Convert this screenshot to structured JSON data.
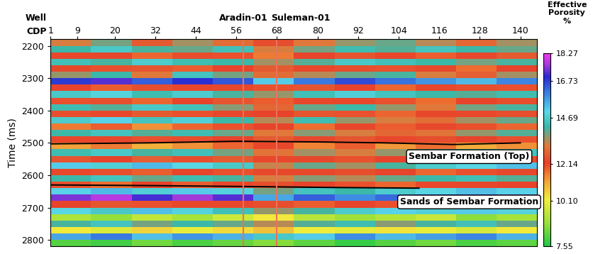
{
  "chart_data": {
    "type": "heatmap",
    "x_label": "CDP",
    "x_title_left": "Well",
    "y_label": "Time (ms)",
    "colorbar_label": "Effective\nPorosity\n%",
    "xlim": [
      1,
      145
    ],
    "xticks": [
      1,
      9,
      20,
      32,
      44,
      56,
      68,
      80,
      92,
      104,
      116,
      128,
      140
    ],
    "ylim": [
      2180,
      2820
    ],
    "yticks": [
      2200,
      2300,
      2400,
      2500,
      2600,
      2700,
      2800
    ],
    "x_edges": [
      1,
      13,
      25,
      37,
      49,
      61,
      73,
      85,
      97,
      109,
      121,
      133,
      145
    ],
    "y_edges": [
      2180,
      2200,
      2220,
      2240,
      2260,
      2280,
      2300,
      2320,
      2340,
      2360,
      2380,
      2400,
      2420,
      2440,
      2460,
      2480,
      2500,
      2520,
      2540,
      2560,
      2580,
      2600,
      2620,
      2640,
      2660,
      2680,
      2700,
      2720,
      2740,
      2760,
      2780,
      2800,
      2820
    ],
    "cells": [
      [
        13.2,
        13.8,
        12.6,
        13.5,
        12.9,
        12.4,
        13.1,
        13.6,
        13.9,
        13.4,
        12.8,
        13.5
      ],
      [
        14.2,
        14.6,
        14.1,
        13.9,
        14.4,
        13.2,
        13.8,
        14.3,
        14.0,
        14.5,
        14.2,
        13.9
      ],
      [
        12.1,
        12.3,
        11.8,
        12.4,
        12.0,
        11.6,
        12.2,
        12.5,
        12.1,
        11.9,
        12.3,
        12.6
      ],
      [
        14.4,
        14.1,
        14.7,
        14.3,
        14.2,
        13.5,
        14.0,
        14.6,
        14.4,
        14.2,
        13.8,
        14.1
      ],
      [
        12.3,
        12.0,
        12.5,
        11.9,
        12.2,
        12.6,
        12.1,
        12.4,
        12.0,
        12.3,
        11.7,
        12.2
      ],
      [
        13.6,
        14.2,
        13.1,
        14.5,
        13.8,
        12.9,
        13.4,
        13.9,
        14.1,
        13.2,
        12.7,
        13.5
      ],
      [
        16.8,
        17.2,
        16.4,
        16.9,
        16.5,
        15.2,
        16.1,
        16.6,
        16.2,
        15.8,
        15.4,
        16.0
      ],
      [
        12.2,
        11.9,
        12.4,
        12.1,
        12.3,
        12.0,
        12.5,
        12.2,
        11.8,
        12.1,
        12.4,
        12.0
      ],
      [
        14.6,
        14.9,
        14.3,
        14.7,
        14.1,
        13.6,
        14.4,
        14.8,
        14.5,
        14.2,
        14.0,
        14.3
      ],
      [
        12.0,
        12.4,
        11.8,
        12.2,
        12.5,
        11.9,
        12.1,
        12.3,
        12.0,
        11.7,
        12.2,
        12.4
      ],
      [
        14.3,
        14.0,
        14.6,
        14.4,
        13.7,
        12.8,
        13.9,
        14.2,
        13.6,
        13.1,
        13.8,
        14.1
      ],
      [
        12.4,
        12.1,
        12.6,
        12.0,
        12.3,
        12.2,
        12.5,
        12.0,
        11.8,
        12.3,
        12.1,
        12.4
      ],
      [
        14.7,
        15.1,
        14.5,
        14.8,
        14.2,
        13.4,
        14.3,
        13.6,
        13.2,
        12.9,
        13.5,
        13.9
      ],
      [
        11.6,
        11.9,
        11.4,
        11.8,
        12.0,
        12.2,
        11.7,
        12.1,
        11.9,
        12.3,
        12.0,
        11.8
      ],
      [
        14.2,
        14.5,
        14.0,
        14.3,
        13.9,
        13.1,
        13.7,
        13.2,
        12.8,
        13.0,
        13.6,
        14.0
      ],
      [
        12.1,
        12.3,
        12.0,
        12.4,
        12.2,
        12.6,
        12.3,
        12.5,
        12.1,
        12.4,
        12.2,
        12.0
      ],
      [
        11.2,
        11.6,
        11.0,
        11.4,
        11.8,
        12.1,
        11.5,
        11.9,
        11.3,
        11.7,
        11.1,
        11.4
      ],
      [
        14.3,
        14.6,
        14.1,
        14.4,
        13.8,
        13.0,
        13.5,
        13.2,
        13.6,
        14.0,
        14.3,
        14.5
      ],
      [
        12.5,
        12.2,
        12.7,
        12.4,
        12.6,
        12.1,
        12.3,
        12.0,
        12.2,
        12.5,
        12.4,
        12.1
      ],
      [
        15.2,
        14.8,
        15.4,
        15.0,
        14.6,
        13.3,
        13.9,
        13.5,
        14.1,
        14.7,
        15.0,
        15.3
      ],
      [
        12.1,
        12.4,
        11.9,
        12.2,
        12.0,
        12.3,
        12.1,
        12.4,
        12.2,
        11.8,
        12.0,
        12.3
      ],
      [
        14.2,
        14.5,
        13.9,
        14.3,
        14.1,
        13.2,
        13.7,
        13.4,
        13.9,
        14.2,
        14.4,
        14.0
      ],
      [
        12.0,
        11.7,
        12.2,
        11.9,
        12.1,
        12.4,
        12.2,
        12.0,
        11.8,
        12.1,
        12.3,
        12.2
      ],
      [
        15.1,
        15.4,
        14.8,
        15.2,
        14.9,
        13.8,
        14.5,
        14.2,
        14.7,
        15.0,
        15.3,
        15.1
      ],
      [
        17.4,
        17.8,
        17.1,
        17.6,
        17.2,
        15.6,
        16.4,
        15.9,
        16.3,
        16.8,
        17.1,
        17.5
      ],
      [
        12.2,
        12.5,
        12.0,
        12.3,
        12.1,
        12.4,
        11.9,
        12.2,
        12.0,
        12.3,
        12.1,
        12.4
      ],
      [
        15.0,
        14.6,
        15.3,
        14.9,
        14.4,
        13.6,
        14.1,
        14.7,
        15.1,
        14.8,
        15.2,
        14.9
      ],
      [
        9.1,
        8.8,
        9.4,
        9.0,
        9.6,
        10.2,
        9.3,
        8.9,
        9.2,
        9.5,
        8.7,
        9.0
      ],
      [
        14.1,
        14.5,
        13.8,
        14.2,
        13.9,
        13.4,
        14.0,
        14.3,
        13.7,
        14.1,
        14.4,
        13.9
      ],
      [
        10.2,
        9.8,
        10.5,
        10.0,
        10.4,
        10.8,
        10.1,
        9.9,
        10.3,
        10.0,
        9.7,
        10.2
      ],
      [
        15.6,
        16.1,
        15.3,
        15.8,
        15.5,
        14.6,
        15.2,
        15.9,
        15.4,
        15.7,
        16.0,
        15.5
      ],
      [
        8.1,
        7.9,
        8.4,
        8.0,
        8.3,
        8.6,
        8.2,
        7.8,
        8.1,
        8.4,
        8.0,
        8.2
      ]
    ],
    "colorbar_range": [
      7.55,
      18.27
    ],
    "colorbar_ticks": [
      7.55,
      {
        "value": 10.1,
        "label": "10.10"
      },
      12.14,
      14.69,
      16.73,
      18.27
    ],
    "wells": [
      {
        "name": "Aradin-01",
        "cdp": 58,
        "color": "#e8735a"
      },
      {
        "name": "Suleman-01",
        "cdp": 68,
        "color": "#e8735a"
      }
    ],
    "horizons": [
      {
        "name": "Sembar Formation (Top)",
        "cdp": [
          1,
          30,
          56,
          80,
          100,
          120,
          140
        ],
        "time": [
          2503,
          2500,
          2495,
          2497,
          2500,
          2505,
          2500
        ],
        "color": "#000000"
      },
      {
        "name": "Sands of Sembar Formation",
        "cdp": [
          1,
          30,
          60,
          85,
          110
        ],
        "time": [
          2630,
          2632,
          2635,
          2638,
          2640
        ],
        "color": "#000000"
      }
    ]
  }
}
